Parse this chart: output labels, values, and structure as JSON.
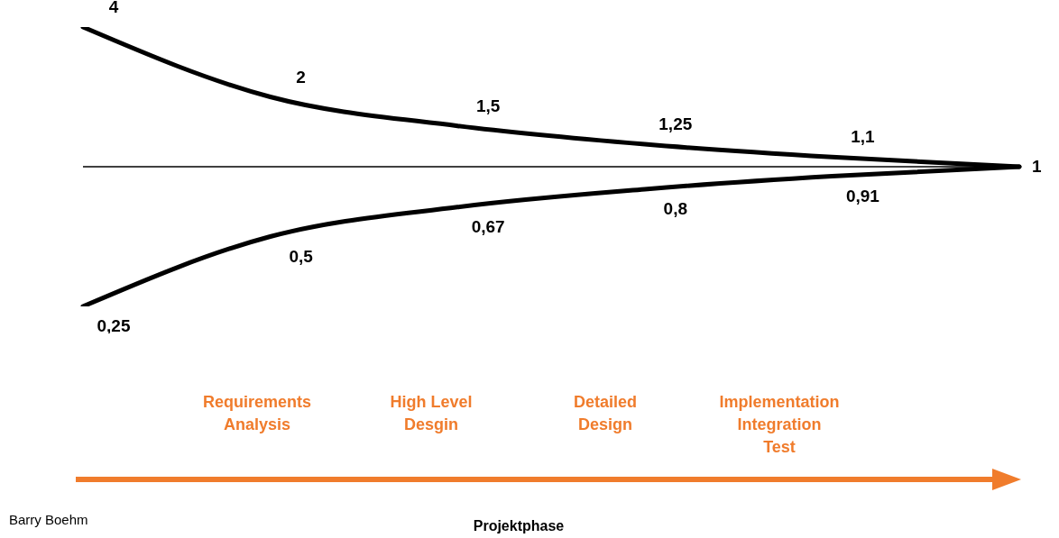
{
  "chart_data": {
    "type": "line",
    "categories": [
      null,
      null,
      null,
      null,
      null,
      null
    ],
    "series": [
      {
        "color": "#000000",
        "values": [
          4,
          2,
          1.5,
          1.25,
          1.1,
          1
        ],
        "value_labels": [
          "4",
          "2",
          "1,5",
          "1,25",
          "1,1",
          "1"
        ]
      },
      {
        "color": "#000000",
        "values": [
          0.25,
          0.5,
          0.67,
          0.8,
          0.91,
          1
        ],
        "value_labels": [
          "0,25",
          "0,5",
          "0,67",
          "0,8",
          "0,91",
          null
        ]
      }
    ],
    "log": true,
    "tick_labels": false,
    "marker": "none",
    "line_style": "solid",
    "ref_lines": [
      {
        "axis": "y",
        "value": 1,
        "color": "#000000"
      }
    ],
    "annotations": [
      "Requirements\nAnalysis",
      "High Level\nDesgin",
      "Detailed\nDesign",
      "Implementation\nIntegration\nTest",
      "Projektphase",
      "Barry Boehm"
    ]
  }
}
